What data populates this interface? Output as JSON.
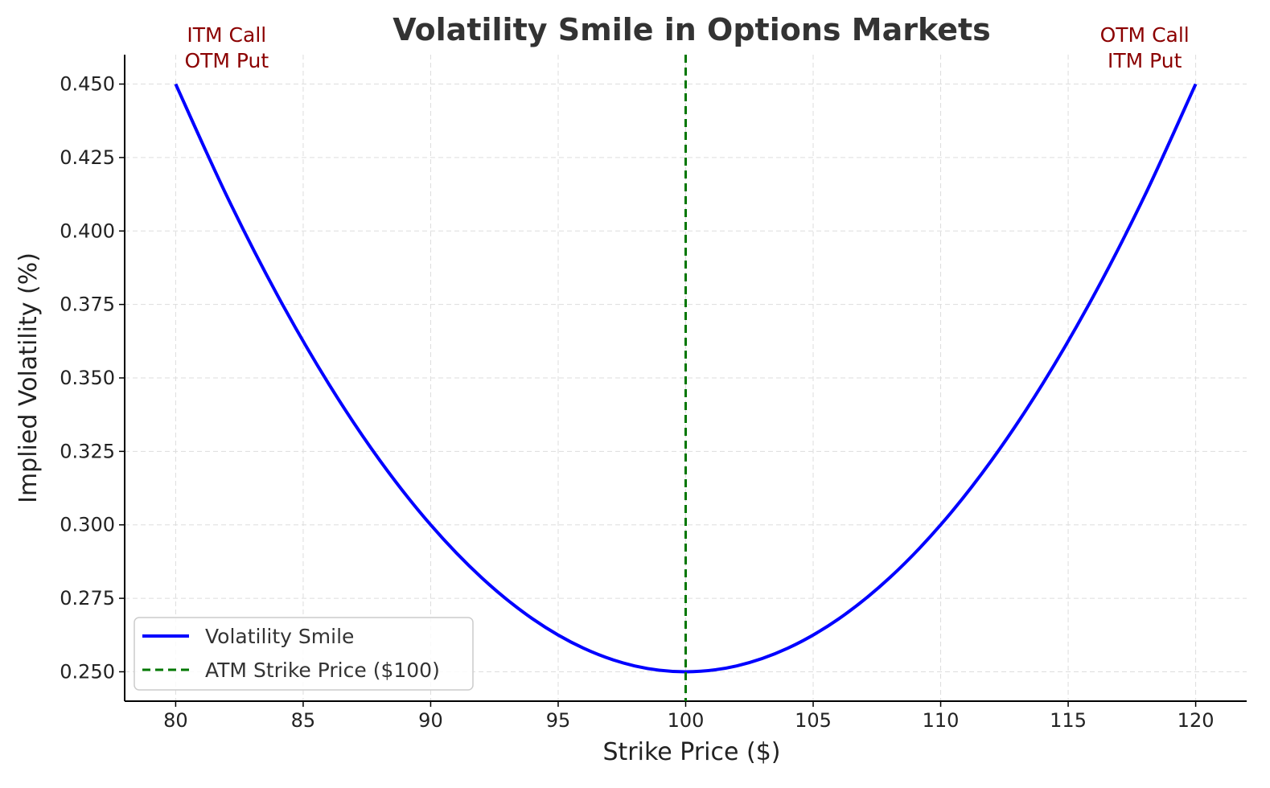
{
  "chart_data": {
    "type": "line",
    "title": "Volatility Smile in Options Markets",
    "xlabel": "Strike Price ($)",
    "ylabel": "Implied Volatility (%)",
    "xlim": [
      78,
      122
    ],
    "ylim": [
      0.24,
      0.46
    ],
    "xticks": [
      80,
      85,
      90,
      95,
      100,
      105,
      110,
      115,
      120
    ],
    "yticks": [
      0.25,
      0.275,
      0.3,
      0.325,
      0.35,
      0.375,
      0.4,
      0.425,
      0.45
    ],
    "ytick_labels": [
      "0.250",
      "0.275",
      "0.300",
      "0.325",
      "0.350",
      "0.375",
      "0.400",
      "0.425",
      "0.450"
    ],
    "grid": true,
    "legend_position": "lower-left",
    "series": [
      {
        "name": "Volatility Smile",
        "color": "#0000ff",
        "style": "solid",
        "x": [
          80,
          82,
          84,
          86,
          88,
          90,
          92,
          94,
          96,
          98,
          100,
          102,
          104,
          106,
          108,
          110,
          112,
          114,
          116,
          118,
          120
        ],
        "y": [
          0.45,
          0.412,
          0.378,
          0.348,
          0.322,
          0.3,
          0.282,
          0.268,
          0.258,
          0.252,
          0.25,
          0.252,
          0.258,
          0.268,
          0.282,
          0.3,
          0.322,
          0.348,
          0.378,
          0.412,
          0.45
        ]
      },
      {
        "name": "ATM Strike Price ($100)",
        "color": "#007700",
        "style": "dashed",
        "type": "vline",
        "x": 100
      }
    ],
    "annotations": [
      {
        "x": 82,
        "lines": [
          "ITM Call",
          "OTM Put"
        ],
        "color": "#8b0000"
      },
      {
        "x": 118,
        "lines": [
          "OTM Call",
          "ITM Put"
        ],
        "color": "#8b0000"
      }
    ]
  }
}
